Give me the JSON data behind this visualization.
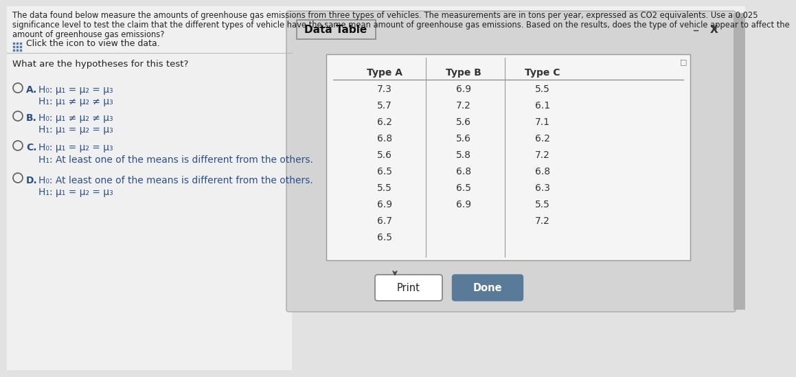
{
  "header_line1": "The data found below measure the amounts of greenhouse gas emissions from three types of vehicles. The measurements are in tons per year, expressed as CO2 equivalents. Use a 0.025",
  "header_line2": "significance level to test the claim that the different types of vehicle have the same mean amount of greenhouse gas emissions. Based on the results, does the type of vehicle appear to affect the",
  "header_line3": "amount of greenhouse gas emissions?",
  "icon_text": "Click the icon to view the data.",
  "question_text": "What are the hypotheses for this test?",
  "options": [
    {
      "letter": "A.",
      "h0": "H₀: μ₁ = μ₂ = μ₃",
      "h1": "H₁: μ₁ ≠ μ₂ ≠ μ₃"
    },
    {
      "letter": "B.",
      "h0": "H₀: μ₁ ≠ μ₂ ≠ μ₃",
      "h1": "H₁: μ₁ = μ₂ = μ₃"
    },
    {
      "letter": "C.",
      "h0": "H₀: μ₁ = μ₂ = μ₃",
      "h1": "H₁: At least one of the means is different from the others."
    },
    {
      "letter": "D.",
      "h0": "H₀: At least one of the means is different from the others.",
      "h1": "H₁: μ₁ = μ₂ = μ₃"
    }
  ],
  "data_table_title": "Data Table",
  "table_headers": [
    "Type A",
    "Type B",
    "Type C"
  ],
  "type_a": [
    "7.3",
    "5.7",
    "6.2",
    "6.8",
    "5.6",
    "6.5",
    "5.5",
    "6.9",
    "6.7",
    "6.5"
  ],
  "type_b": [
    "6.9",
    "7.2",
    "5.6",
    "5.6",
    "5.8",
    "6.8",
    "6.5",
    "6.9",
    "",
    ""
  ],
  "type_c": [
    "5.5",
    "6.1",
    "7.1",
    "6.2",
    "7.2",
    "6.8",
    "6.3",
    "5.5",
    "7.2",
    ""
  ],
  "bg_color": "#e2e2e2",
  "left_panel_bg": "#e8e8e8",
  "dialog_bg": "#d8d8d8",
  "dialog_inner_bg": "#f2f2f2",
  "table_bg": "#ffffff",
  "text_color": "#222222",
  "option_text_color": "#2a4f8a",
  "done_button_color": "#5a7a9a",
  "print_button_color": "#ffffff"
}
